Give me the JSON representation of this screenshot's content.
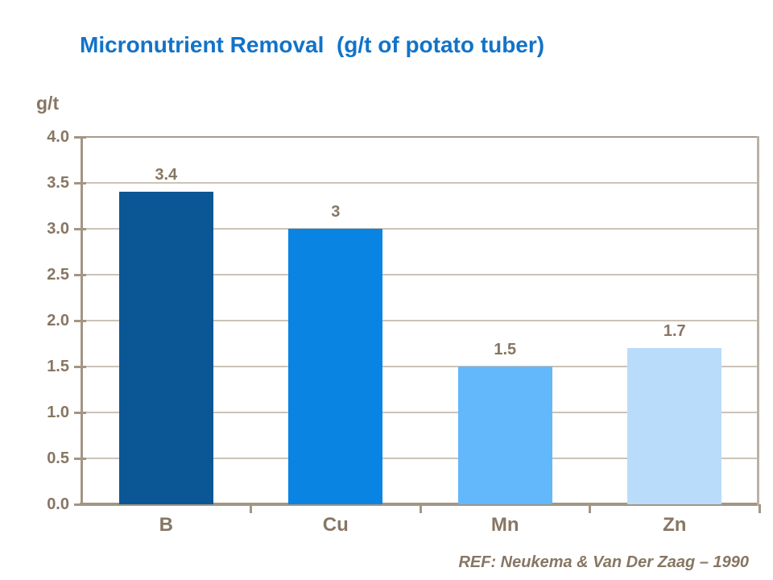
{
  "slide": {
    "title": "Micronutrient Removal  (g/t of potato tuber)",
    "reference": "REF: Neukema & Van Der Zaag – 1990"
  },
  "chart_data": {
    "type": "bar",
    "title": "Micronutrient Removal (g/t of potato tuber)",
    "ylabel": "g/t",
    "xlabel": "",
    "categories": [
      "B",
      "Cu",
      "Mn",
      "Zn"
    ],
    "values": [
      3.4,
      3,
      1.5,
      1.7
    ],
    "bar_labels": [
      "3.4",
      "3",
      "1.5",
      "1.7"
    ],
    "bar_colors": [
      "#0B5796",
      "#0984E3",
      "#63B7FB",
      "#B9DCFB"
    ],
    "ylim": [
      0,
      4
    ],
    "ytick_interval": 0.5,
    "ytick_labels": [
      "4.0",
      "3.5",
      "3.0",
      "2.5",
      "2.0",
      "1.5",
      "1.0",
      "0.5",
      "0.0"
    ],
    "grid": "horizontal",
    "legend_position": "none",
    "reference": "REF: Neukema & Van Der Zaag – 1990"
  },
  "colors": {
    "background": "#FFFFFF",
    "title_text": "#1273C8",
    "label_text": "#877663",
    "axis_line": "#A39584",
    "gridline": "#CBC3B7",
    "right_frame": "#BCB2A5"
  }
}
